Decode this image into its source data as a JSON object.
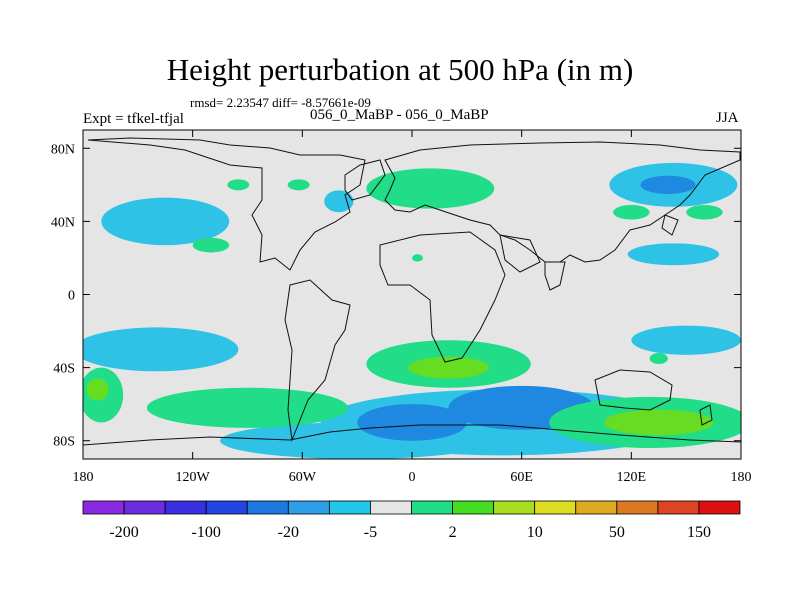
{
  "chart_data": {
    "type": "heatmap",
    "title": "Height perturbation at 500 hPa (in m)",
    "stats_text": "rmsd= 2.23547 diff= -8.57661e-09",
    "left_label": "Expt = tfkel-tfjal",
    "subtitle": "056_0_MaBP - 056_0_MaBP",
    "season": "JJA",
    "xlim": [
      -180,
      180
    ],
    "ylim": [
      -90,
      90
    ],
    "x_ticks": [
      {
        "value": -180,
        "label": "180"
      },
      {
        "value": -120,
        "label": "120W"
      },
      {
        "value": -60,
        "label": "60W"
      },
      {
        "value": 0,
        "label": "0"
      },
      {
        "value": 60,
        "label": "60E"
      },
      {
        "value": 120,
        "label": "120E"
      },
      {
        "value": 180,
        "label": "180"
      }
    ],
    "y_ticks": [
      {
        "value": 80,
        "label": "80N"
      },
      {
        "value": 40,
        "label": "40N"
      },
      {
        "value": 0,
        "label": "0"
      },
      {
        "value": -40,
        "label": "40S"
      },
      {
        "value": -80,
        "label": "80S"
      }
    ],
    "colorbar": {
      "colors": [
        "#8a2be2",
        "#6a2ee0",
        "#3a2fe0",
        "#2244e0",
        "#1f78e0",
        "#2c9fe8",
        "#22c6e6",
        "#e5e5e5",
        "#22dd88",
        "#44dd22",
        "#aadd22",
        "#dddd22",
        "#ddaa22",
        "#dd7722",
        "#dd4422",
        "#dd1111"
      ],
      "labels": [
        {
          "index": 1,
          "text": "-200"
        },
        {
          "index": 3,
          "text": "-100"
        },
        {
          "index": 5,
          "text": "-20"
        },
        {
          "index": 7,
          "text": "-5"
        },
        {
          "index": 9,
          "text": "2"
        },
        {
          "index": 11,
          "text": "10"
        },
        {
          "index": 13,
          "text": "50"
        },
        {
          "index": 15,
          "text": "150"
        }
      ]
    },
    "anomaly_regions": [
      {
        "level": "light_blue",
        "color": "#2ec2e6",
        "lon": -135,
        "lat": 40,
        "rlon": 35,
        "rlat": 13
      },
      {
        "level": "light_blue",
        "color": "#2ec2e6",
        "lon": 143,
        "lat": 60,
        "rlon": 35,
        "rlat": 12
      },
      {
        "level": "light_blue",
        "color": "#2ec2e6",
        "lon": 143,
        "lat": 22,
        "rlon": 25,
        "rlat": 6
      },
      {
        "level": "light_blue",
        "color": "#2ec2e6",
        "lon": 150,
        "lat": -25,
        "rlon": 30,
        "rlat": 8
      },
      {
        "level": "light_blue",
        "color": "#2ec2e6",
        "lon": -140,
        "lat": -30,
        "rlon": 45,
        "rlat": 12
      },
      {
        "level": "light_blue",
        "color": "#2ec2e6",
        "lon": 50,
        "lat": -70,
        "rlon": 100,
        "rlat": 18
      },
      {
        "level": "light_blue",
        "color": "#2ec2e6",
        "lon": -30,
        "lat": -80,
        "rlon": 75,
        "rlat": 10
      },
      {
        "level": "light_blue",
        "color": "#2ec2e6",
        "lon": -40,
        "lat": 51,
        "rlon": 8,
        "rlat": 6
      },
      {
        "level": "mid_blue",
        "color": "#1f88e0",
        "lon": 60,
        "lat": -62,
        "rlon": 40,
        "rlat": 12
      },
      {
        "level": "mid_blue",
        "color": "#1f88e0",
        "lon": 0,
        "lat": -70,
        "rlon": 30,
        "rlat": 10
      },
      {
        "level": "mid_blue",
        "color": "#1f88e0",
        "lon": 140,
        "lat": 60,
        "rlon": 15,
        "rlat": 5
      },
      {
        "level": "green",
        "color": "#22dd88",
        "lon": 10,
        "lat": 58,
        "rlon": 35,
        "rlat": 11
      },
      {
        "level": "green",
        "color": "#22dd88",
        "lon": 20,
        "lat": -38,
        "rlon": 45,
        "rlat": 13
      },
      {
        "level": "green",
        "color": "#22dd88",
        "lon": -90,
        "lat": -62,
        "rlon": 55,
        "rlat": 11
      },
      {
        "level": "green",
        "color": "#22dd88",
        "lon": 130,
        "lat": -70,
        "rlon": 55,
        "rlat": 14
      },
      {
        "level": "green",
        "color": "#22dd88",
        "lon": -170,
        "lat": -55,
        "rlon": 12,
        "rlat": 15
      },
      {
        "level": "green",
        "color": "#22dd88",
        "lon": -110,
        "lat": 27,
        "rlon": 10,
        "rlat": 4
      },
      {
        "level": "green",
        "color": "#22dd88",
        "lon": 120,
        "lat": 45,
        "rlon": 10,
        "rlat": 4
      },
      {
        "level": "green",
        "color": "#22dd88",
        "lon": 160,
        "lat": 45,
        "rlon": 10,
        "rlat": 4
      },
      {
        "level": "green",
        "color": "#22dd88",
        "lon": -62,
        "lat": 60,
        "rlon": 6,
        "rlat": 3
      },
      {
        "level": "green",
        "color": "#22dd88",
        "lon": -95,
        "lat": 60,
        "rlon": 6,
        "rlat": 3
      },
      {
        "level": "green",
        "color": "#22dd88",
        "lon": 3,
        "lat": 20,
        "rlon": 3,
        "rlat": 2
      },
      {
        "level": "green",
        "color": "#22dd88",
        "lon": 135,
        "lat": -35,
        "rlon": 5,
        "rlat": 3
      },
      {
        "level": "bright_green",
        "color": "#66dd22",
        "lon": 20,
        "lat": -40,
        "rlon": 22,
        "rlat": 6
      },
      {
        "level": "bright_green",
        "color": "#66dd22",
        "lon": 135,
        "lat": -70,
        "rlon": 30,
        "rlat": 7
      },
      {
        "level": "bright_green",
        "color": "#66dd22",
        "lon": -172,
        "lat": -52,
        "rlon": 6,
        "rlat": 6
      }
    ]
  }
}
